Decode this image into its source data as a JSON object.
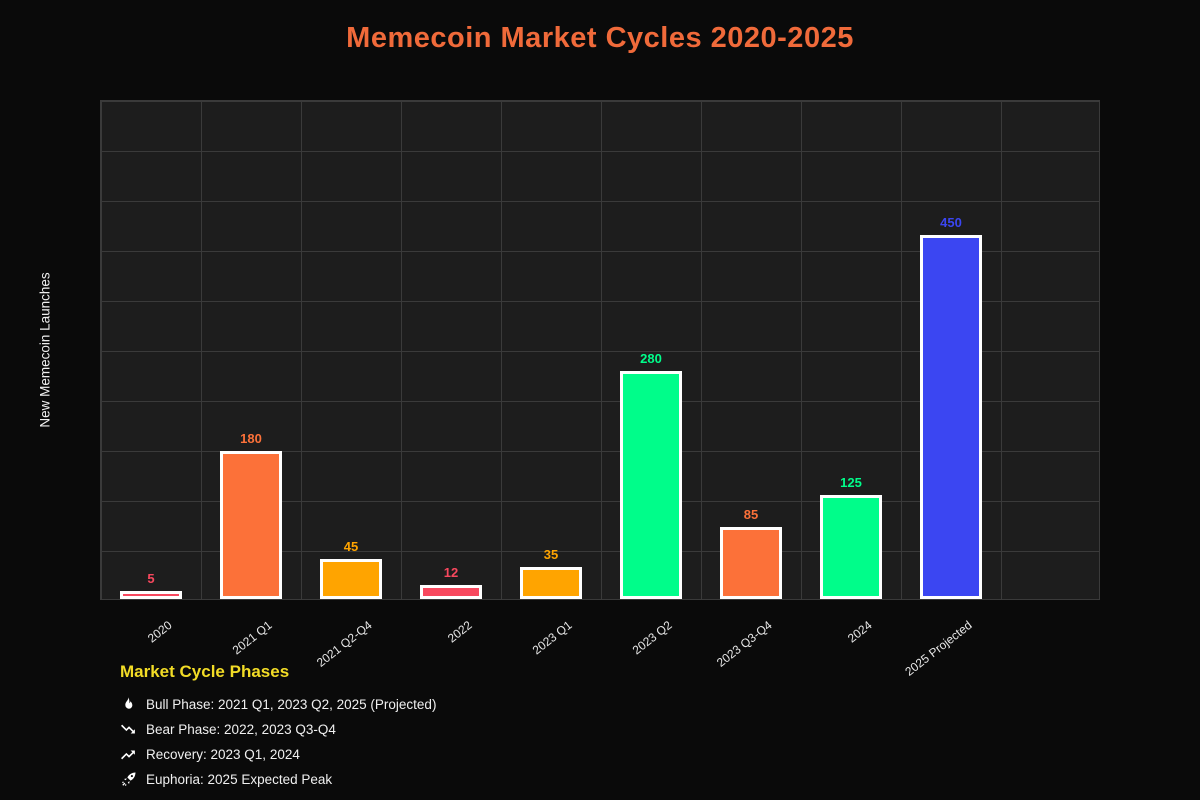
{
  "page": {
    "background": "#0a0a0a",
    "plot_background": "#1d1d1d",
    "grid_color": "#3a3a3a"
  },
  "title": {
    "text": "Memecoin Market Cycles 2020-2025",
    "color": "#f06a3a"
  },
  "chart_data": {
    "type": "bar",
    "title": "Memecoin Market Cycles 2020-2025",
    "xlabel": "",
    "ylabel": "New Memecoin Launches",
    "ylim": [
      0,
      625
    ],
    "grid": true,
    "categories": [
      "2020",
      "2021 Q1",
      "2021 Q2-Q4",
      "2022",
      "2023 Q1",
      "2023 Q2",
      "2023 Q3-Q4",
      "2024",
      "2025 Projected"
    ],
    "values": [
      5,
      180,
      45,
      12,
      35,
      280,
      85,
      125,
      450
    ],
    "value_labels": [
      "5",
      "180",
      "45",
      "12",
      "35",
      "280",
      "85",
      "125",
      "450"
    ],
    "bar_colors": [
      "#f8485e",
      "#fc7139",
      "#ffa400",
      "#f8485e",
      "#ffa400",
      "#00fd8a",
      "#fc7139",
      "#00fd8a",
      "#3b46f2"
    ],
    "bar_border_color": "#ffffff",
    "legend_position": "bottom-left"
  },
  "legend": {
    "title": "Market Cycle Phases",
    "title_color": "#f2dc26",
    "items": [
      {
        "icon": "fire-icon",
        "label": "Bull Phase: 2021 Q1, 2023 Q2, 2025 (Projected)"
      },
      {
        "icon": "chart-down-icon",
        "label": "Bear Phase: 2022, 2023 Q3-Q4"
      },
      {
        "icon": "chart-up-icon",
        "label": "Recovery: 2023 Q1, 2024"
      },
      {
        "icon": "rocket-icon",
        "label": "Euphoria: 2025 Expected Peak"
      }
    ]
  }
}
